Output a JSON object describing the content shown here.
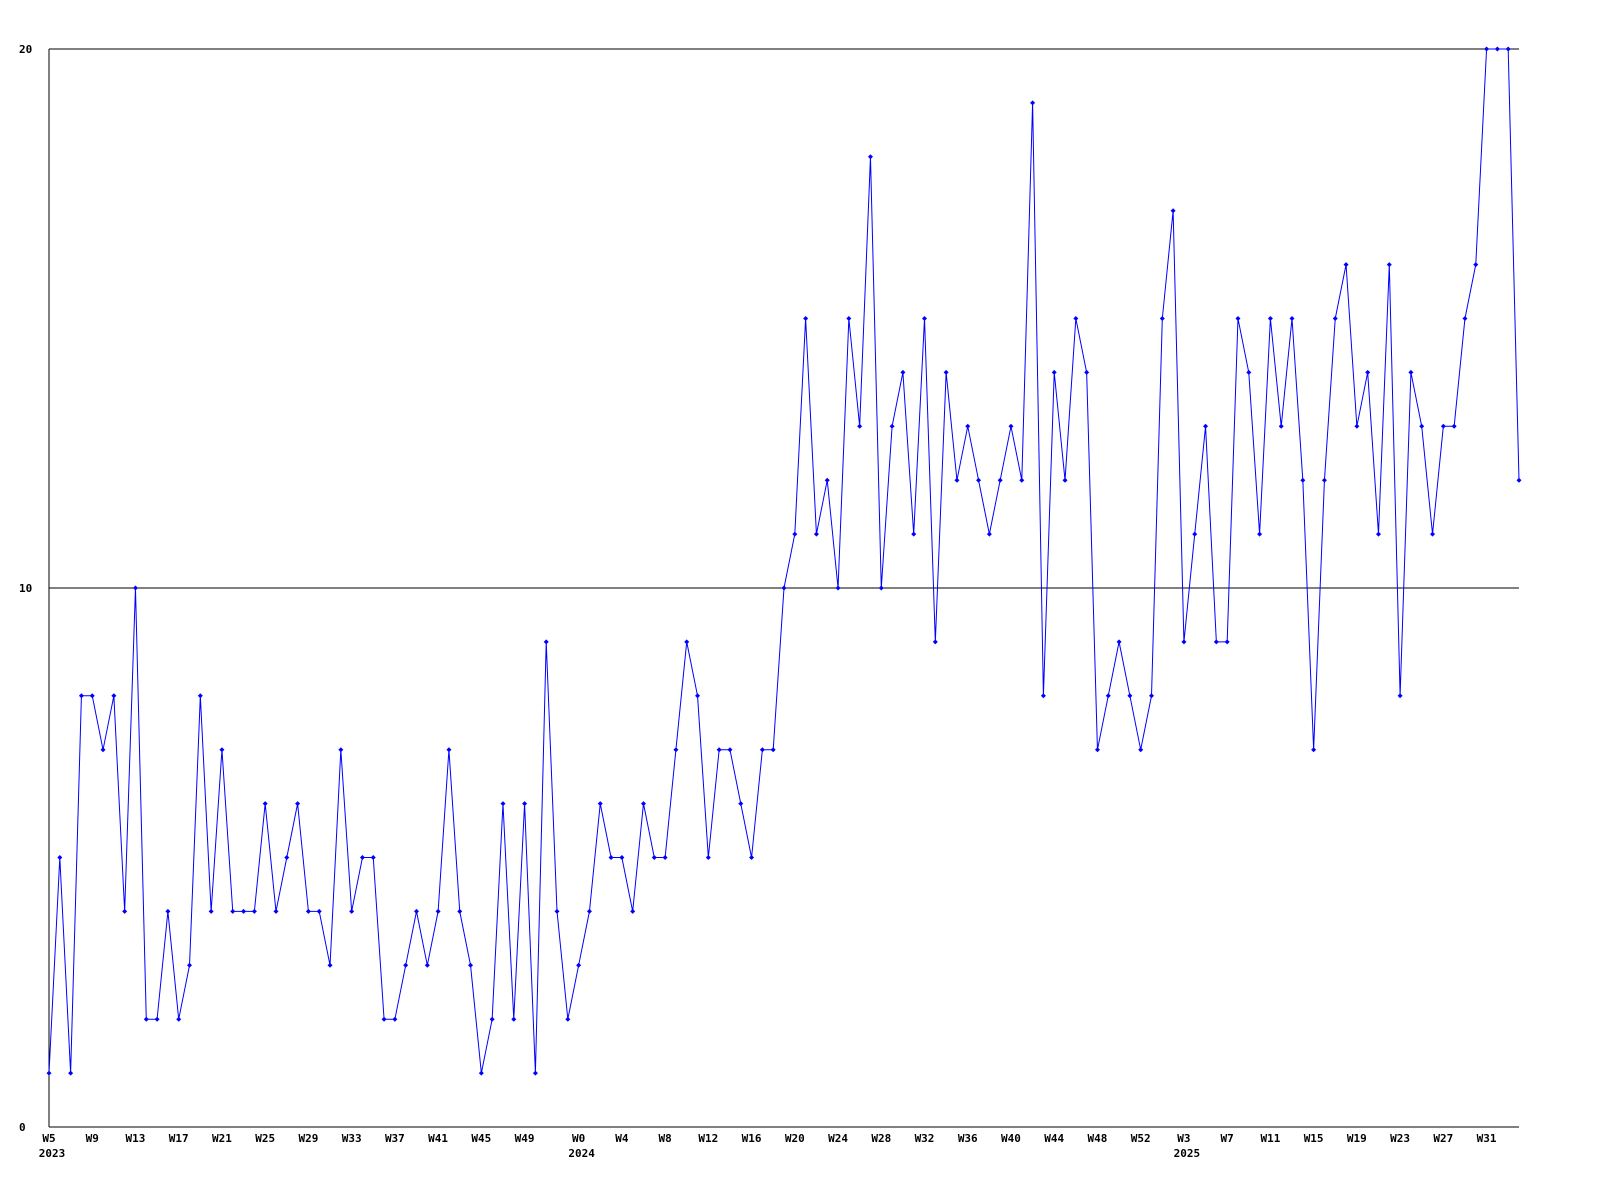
{
  "chart_data": {
    "type": "line",
    "categories": [
      "W5",
      null,
      null,
      null,
      "W9",
      null,
      null,
      null,
      "W13",
      null,
      null,
      null,
      "W17",
      null,
      null,
      null,
      "W21",
      null,
      null,
      null,
      "W25",
      null,
      null,
      null,
      "W29",
      null,
      null,
      null,
      "W33",
      null,
      null,
      null,
      "W37",
      null,
      null,
      null,
      "W41",
      null,
      null,
      null,
      "W45",
      null,
      null,
      null,
      "W49",
      null,
      null,
      null,
      null,
      "W0",
      null,
      null,
      null,
      "W4",
      null,
      null,
      null,
      "W8",
      null,
      null,
      null,
      "W12",
      null,
      null,
      null,
      "W16",
      null,
      null,
      null,
      "W20",
      null,
      null,
      null,
      "W24",
      null,
      null,
      null,
      "W28",
      null,
      null,
      null,
      "W32",
      null,
      null,
      null,
      "W36",
      null,
      null,
      null,
      "W40",
      null,
      null,
      null,
      "W44",
      null,
      null,
      null,
      "W48",
      null,
      null,
      null,
      "W52",
      null,
      null,
      null,
      "W3",
      null,
      null,
      null,
      "W7",
      null,
      null,
      null,
      "W11",
      null,
      null,
      null,
      "W15",
      null,
      null,
      null,
      "W19",
      null,
      null,
      null,
      "W23",
      null,
      null,
      null,
      "W27",
      null,
      null,
      null,
      "W31",
      null,
      null,
      null
    ],
    "year_labels": [
      "2023",
      null,
      null,
      null,
      null,
      null,
      null,
      null,
      null,
      null,
      null,
      null,
      null,
      null,
      null,
      null,
      null,
      null,
      null,
      null,
      null,
      null,
      null,
      null,
      null,
      null,
      null,
      null,
      null,
      null,
      null,
      null,
      null,
      null,
      null,
      null,
      null,
      null,
      null,
      null,
      null,
      null,
      null,
      null,
      null,
      null,
      null,
      null,
      null,
      "2024",
      null,
      null,
      null,
      null,
      null,
      null,
      null,
      null,
      null,
      null,
      null,
      null,
      null,
      null,
      null,
      null,
      null,
      null,
      null,
      null,
      null,
      null,
      null,
      null,
      null,
      null,
      null,
      null,
      null,
      null,
      null,
      null,
      null,
      null,
      null,
      null,
      null,
      null,
      null,
      null,
      null,
      null,
      null,
      null,
      null,
      null,
      null,
      null,
      null,
      null,
      null,
      null,
      null,
      null,
      null,
      "2025",
      null,
      null,
      null,
      null,
      null,
      null,
      null,
      null,
      null,
      null,
      null,
      null,
      null,
      null,
      null,
      null,
      null,
      null,
      null,
      null,
      null,
      null,
      null,
      null,
      null,
      null,
      null,
      null,
      null,
      null,
      null
    ],
    "series": [
      {
        "color": "#0000ff",
        "values": [
          1,
          5,
          1,
          8,
          8,
          7,
          8,
          4,
          10,
          2,
          2,
          4,
          2,
          3,
          8,
          4,
          7,
          4,
          4,
          4,
          6,
          4,
          5,
          6,
          4,
          4,
          3,
          7,
          4,
          5,
          5,
          2,
          2,
          3,
          4,
          3,
          4,
          7,
          4,
          3,
          1,
          2,
          6,
          2,
          6,
          1,
          9,
          4,
          2,
          3,
          4,
          6,
          5,
          5,
          4,
          6,
          5,
          5,
          7,
          9,
          8,
          5,
          7,
          7,
          6,
          5,
          7,
          7,
          10,
          11,
          15,
          11,
          12,
          10,
          15,
          13,
          18,
          10,
          13,
          14,
          11,
          15,
          9,
          14,
          12,
          13,
          12,
          11,
          12,
          13,
          12,
          19,
          8,
          14,
          12,
          15,
          14,
          7,
          8,
          9,
          8,
          7,
          8,
          15,
          17,
          9,
          11,
          13,
          9,
          9,
          15,
          14,
          11,
          15,
          13,
          15,
          12,
          7,
          12,
          15,
          16,
          13,
          14,
          11,
          16,
          8,
          14,
          13,
          11,
          13,
          13,
          15,
          16,
          20,
          20,
          20,
          12
        ]
      }
    ],
    "ylim": [
      0,
      20
    ],
    "yticks": [
      0,
      10,
      20
    ],
    "grid": true
  }
}
